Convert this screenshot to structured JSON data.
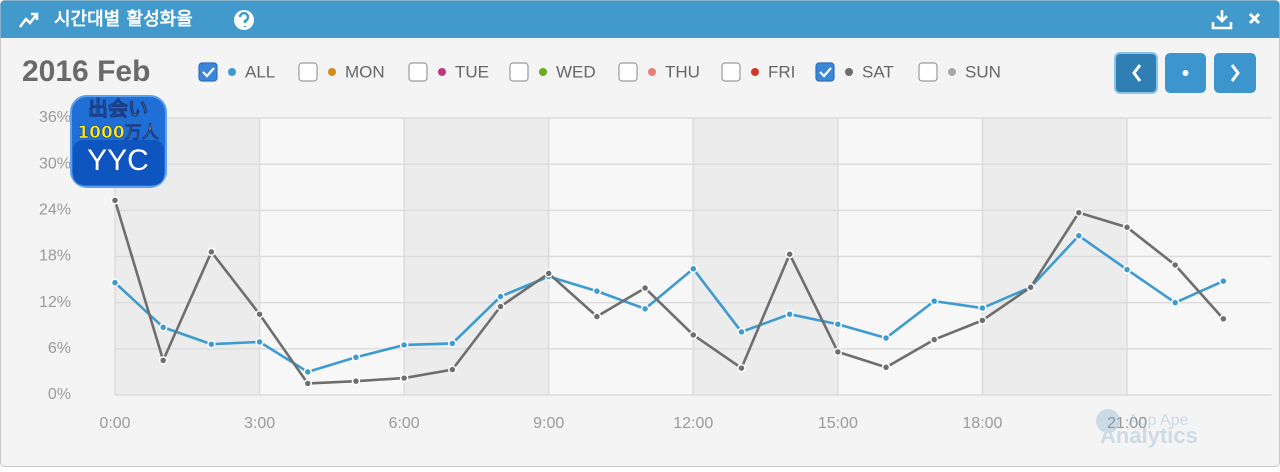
{
  "header": {
    "title": "시간대별 활성화율"
  },
  "period": "2016 Feb",
  "app_icon": {
    "line1": "出会い",
    "line2": "1000万人",
    "line3": "YYC"
  },
  "watermark": {
    "line1": "App Ape",
    "line2": "Analytics"
  },
  "chart_data": {
    "type": "line",
    "categories": [
      "0:00",
      null,
      null,
      "3:00",
      null,
      null,
      "6:00",
      null,
      null,
      "9:00",
      null,
      null,
      "12:00",
      null,
      null,
      "15:00",
      null,
      null,
      "18:00",
      null,
      null,
      "21:00",
      null,
      null
    ],
    "ylim": [
      0,
      36
    ],
    "yticks": [
      {
        "value": 0,
        "label": "0%"
      },
      {
        "value": 6,
        "label": "6%"
      },
      {
        "value": 12,
        "label": "12%"
      },
      {
        "value": 18,
        "label": "18%"
      },
      {
        "value": 24,
        "label": "24%"
      },
      {
        "value": 30,
        "label": "30%"
      },
      {
        "value": 36,
        "label": "36%"
      }
    ],
    "grid": true,
    "series": [
      {
        "name": "ALL",
        "color": "#3d9bd0",
        "checked": true,
        "values": [
          14.6,
          8.8,
          6.6,
          6.9,
          3.0,
          4.9,
          6.5,
          6.7,
          12.8,
          15.4,
          13.5,
          11.2,
          16.4,
          8.2,
          10.5,
          9.2,
          7.4,
          12.2,
          11.3,
          14.0,
          20.7,
          16.3,
          12.0,
          14.8
        ]
      },
      {
        "name": "MON",
        "color": "#d38b1c",
        "checked": false
      },
      {
        "name": "TUE",
        "color": "#c2387e",
        "checked": false
      },
      {
        "name": "WED",
        "color": "#6aab1f",
        "checked": false
      },
      {
        "name": "THU",
        "color": "#e77f72",
        "checked": false
      },
      {
        "name": "FRI",
        "color": "#cf3a2a",
        "checked": false
      },
      {
        "name": "SAT",
        "color": "#6e6e6e",
        "checked": true,
        "values": [
          25.3,
          4.5,
          18.6,
          10.5,
          1.5,
          1.8,
          2.2,
          3.3,
          11.5,
          15.8,
          10.2,
          13.9,
          7.8,
          3.5,
          18.3,
          5.6,
          3.6,
          7.2,
          9.7,
          14.0,
          23.7,
          21.8,
          16.9,
          9.9
        ]
      },
      {
        "name": "SUN",
        "color": "#a8a8a8",
        "checked": false
      }
    ]
  }
}
